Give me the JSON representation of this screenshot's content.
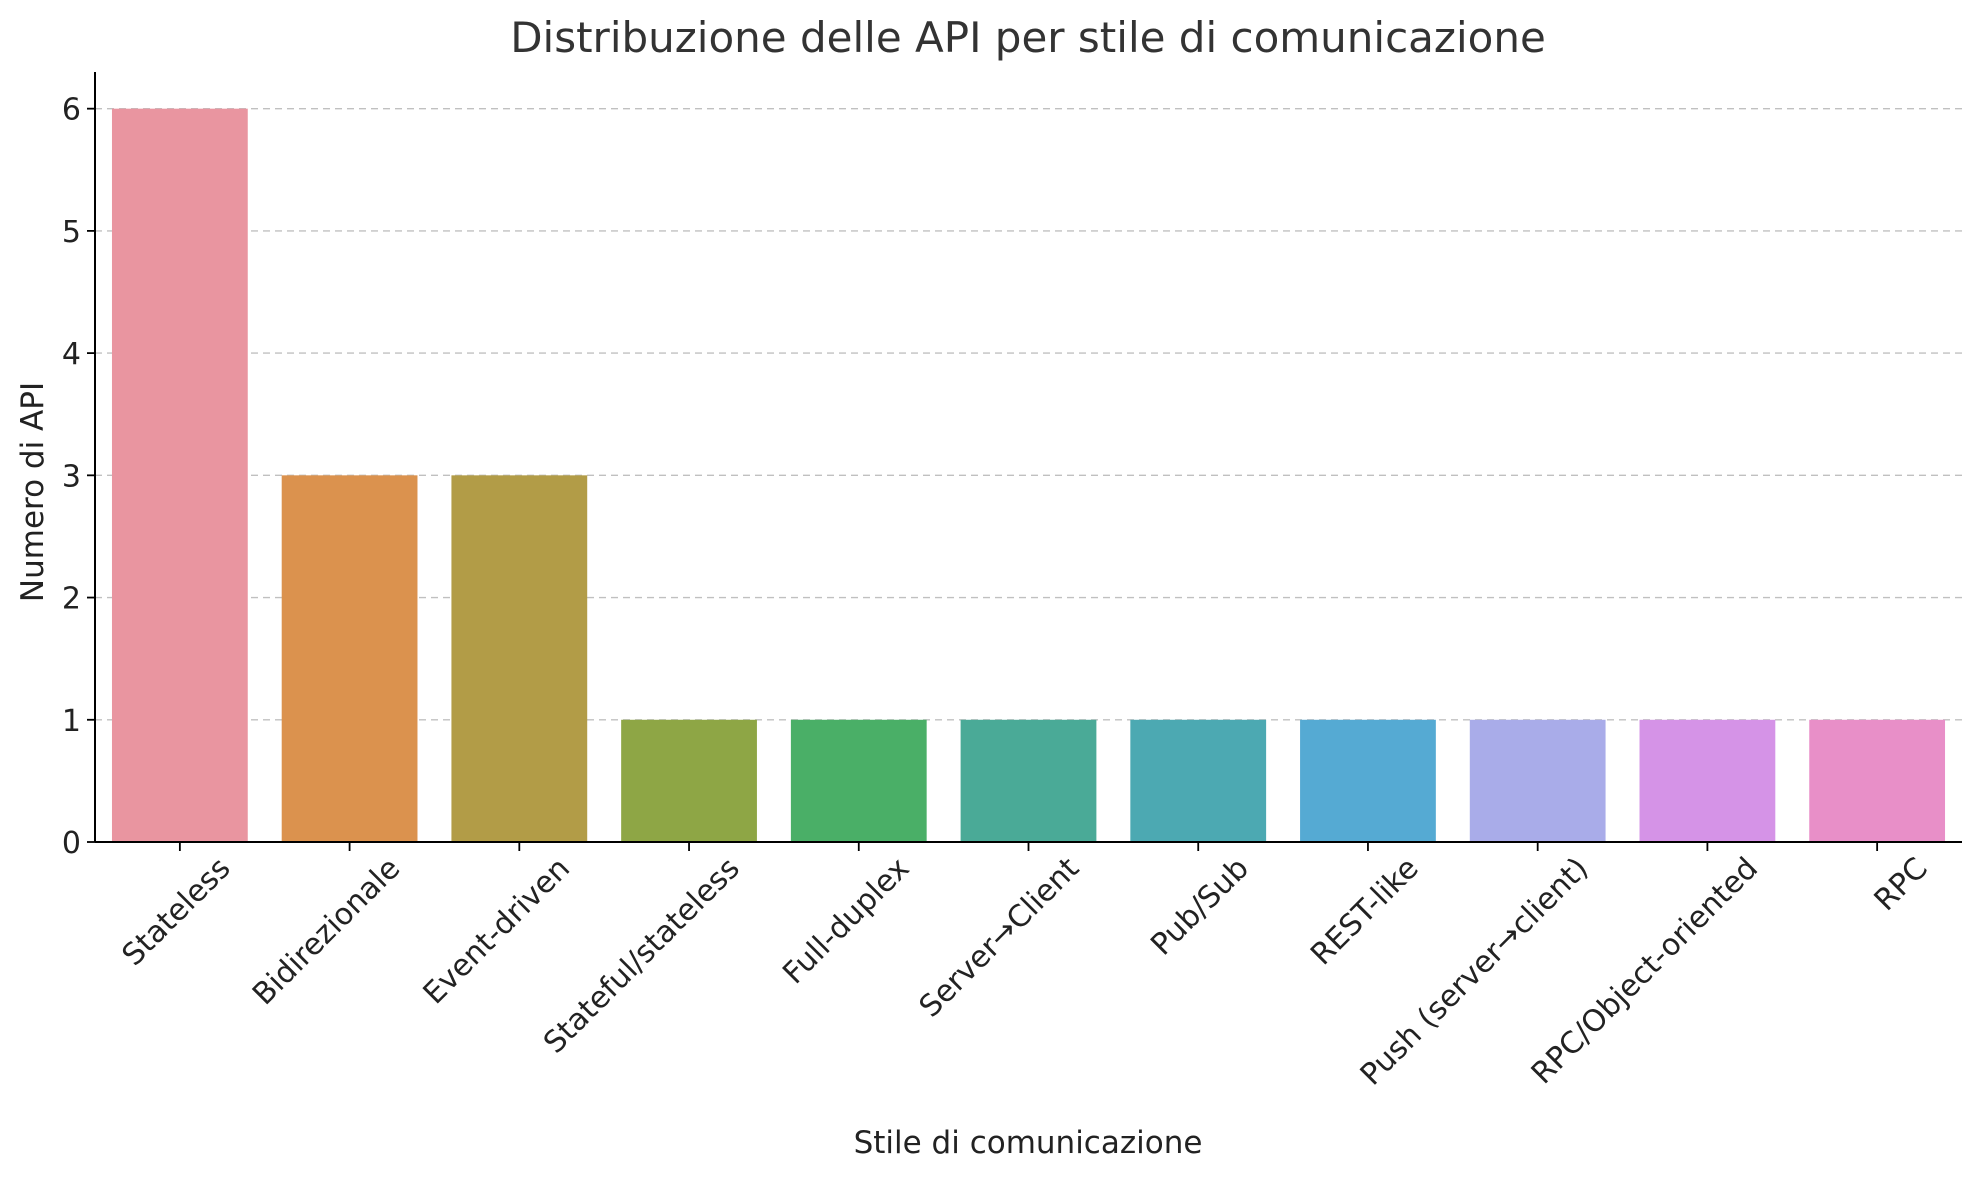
{
  "chart_data": {
    "type": "bar",
    "title": "Distribuzione delle API per stile di comunicazione",
    "xlabel": "Stile di comunicazione",
    "ylabel": "Numero di API",
    "categories": [
      "Stateless",
      "Bidirezionale",
      "Event-driven",
      "Stateful/stateless",
      "Full-duplex",
      "Server→Client",
      "Pub/Sub",
      "REST-like",
      "Push (server→client)",
      "RPC/Object-oriented",
      "RPC"
    ],
    "values": [
      6,
      3,
      3,
      1,
      1,
      1,
      1,
      1,
      1,
      1,
      1
    ],
    "colors": [
      "#E995A0",
      "#DB924E",
      "#B29C47",
      "#8EA645",
      "#4AAF67",
      "#4AAA97",
      "#4CA9B2",
      "#55AAD3",
      "#A9ACE9",
      "#D593E7",
      "#E88FC8"
    ],
    "ylim": [
      0,
      6.3
    ],
    "yticks": [
      "0",
      "1",
      "2",
      "3",
      "4",
      "5",
      "6"
    ],
    "grid": "y-dashed",
    "legend": "none",
    "spines": "left-bottom"
  }
}
